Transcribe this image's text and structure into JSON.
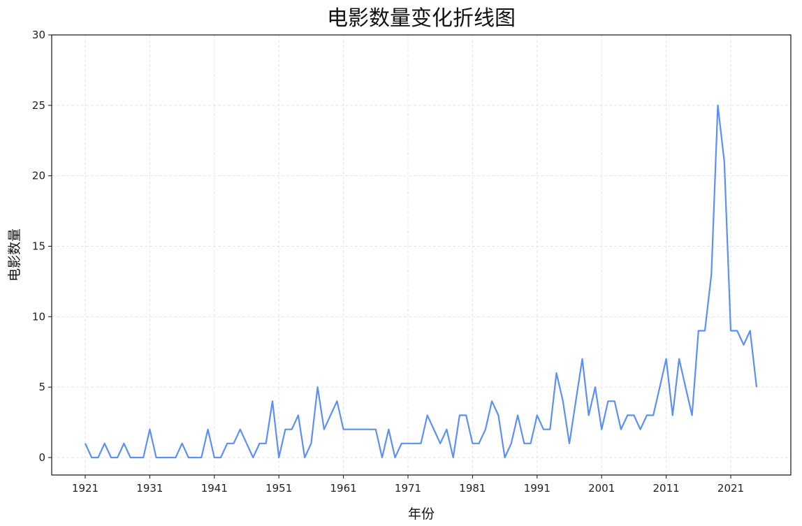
{
  "chart_data": {
    "type": "line",
    "title": "电影数量变化折线图",
    "xlabel": "年份",
    "ylabel": "电影数量",
    "xticks": [
      1921,
      1931,
      1941,
      1951,
      1961,
      1971,
      1981,
      1991,
      2001,
      2011,
      2021
    ],
    "yticks": [
      0,
      5,
      10,
      15,
      20,
      25,
      30
    ],
    "ylim": [
      -1.25,
      30
    ],
    "xlim": [
      1915.8,
      2030.4
    ],
    "grid": true,
    "legend": null,
    "line_color": "#5b8ff9",
    "x": [
      1921,
      1922,
      1923,
      1924,
      1925,
      1926,
      1927,
      1928,
      1929,
      1930,
      1931,
      1932,
      1933,
      1934,
      1935,
      1936,
      1937,
      1938,
      1939,
      1940,
      1941,
      1942,
      1943,
      1944,
      1945,
      1946,
      1947,
      1948,
      1949,
      1950,
      1951,
      1952,
      1953,
      1954,
      1955,
      1956,
      1957,
      1958,
      1959,
      1960,
      1961,
      1962,
      1963,
      1964,
      1965,
      1966,
      1967,
      1968,
      1969,
      1970,
      1971,
      1972,
      1973,
      1974,
      1975,
      1976,
      1977,
      1978,
      1979,
      1980,
      1981,
      1982,
      1983,
      1984,
      1985,
      1986,
      1987,
      1988,
      1989,
      1990,
      1991,
      1992,
      1993,
      1994,
      1995,
      1996,
      1997,
      1998,
      1999,
      2000,
      2001,
      2002,
      2003,
      2004,
      2005,
      2006,
      2007,
      2008,
      2009,
      2010,
      2011,
      2012,
      2013,
      2014,
      2015,
      2016,
      2017,
      2018,
      2019,
      2020,
      2021,
      2022,
      2023,
      2024,
      2025
    ],
    "values": [
      1,
      0,
      0,
      1,
      0,
      0,
      1,
      0,
      0,
      0,
      2,
      0,
      0,
      0,
      0,
      1,
      0,
      0,
      0,
      2,
      0,
      0,
      1,
      1,
      2,
      1,
      0,
      1,
      1,
      4,
      0,
      2,
      2,
      3,
      0,
      1,
      5,
      2,
      3,
      4,
      2,
      2,
      2,
      2,
      2,
      2,
      0,
      2,
      0,
      1,
      1,
      1,
      1,
      3,
      2,
      1,
      2,
      0,
      3,
      3,
      1,
      1,
      2,
      4,
      3,
      0,
      1,
      3,
      1,
      1,
      3,
      2,
      2,
      6,
      4,
      1,
      4,
      7,
      3,
      5,
      2,
      4,
      4,
      2,
      3,
      3,
      2,
      3,
      3,
      5,
      7,
      3,
      7,
      5,
      3,
      9,
      9,
      13,
      25,
      21,
      9,
      9,
      8,
      9,
      5
    ]
  }
}
